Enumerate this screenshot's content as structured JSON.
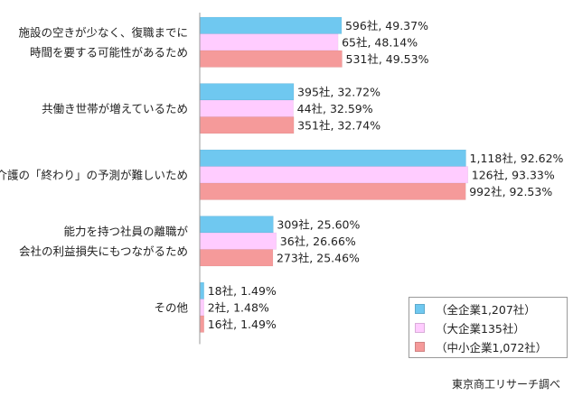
{
  "chart_data": {
    "type": "bar",
    "orientation": "horizontal",
    "categories": [
      [
        "施設の空きが少なく、復職までに",
        "時間を要する可能性があるため"
      ],
      [
        "共働き世帯が増えているため"
      ],
      [
        "介護の「終わり」の予測が難しいため"
      ],
      [
        "能力を持つ社員の離職が",
        "会社の利益損失にもつながるため"
      ],
      [
        "その他"
      ]
    ],
    "series": [
      {
        "name": "（全企業1,207社）",
        "color": "#6fc8f0",
        "values": [
          49.37,
          32.72,
          92.62,
          25.6,
          1.49
        ],
        "labels": [
          "596社, 49.37%",
          "395社, 32.72%",
          "1,118社, 92.62%",
          "309社, 25.60%",
          "18社, 1.49%"
        ]
      },
      {
        "name": "（大企業135社）",
        "color": "#ffccff",
        "values": [
          48.14,
          32.59,
          93.33,
          26.66,
          1.48
        ],
        "labels": [
          "65社, 48.14%",
          "44社, 32.59%",
          "126社, 93.33%",
          "36社, 26.66%",
          "2社, 1.48%"
        ]
      },
      {
        "name": "（中小企業1,072社）",
        "color": "#f59a9a",
        "values": [
          49.53,
          32.74,
          92.53,
          25.46,
          1.49
        ],
        "labels": [
          "531社, 49.53%",
          "351社, 32.74%",
          "992社, 92.53%",
          "273社, 25.46%",
          "16社, 1.49%"
        ]
      }
    ],
    "xlim": [
      0,
      100
    ],
    "grid": false,
    "legend_position": "bottom-right"
  },
  "source": "東京商工リサーチ調べ"
}
